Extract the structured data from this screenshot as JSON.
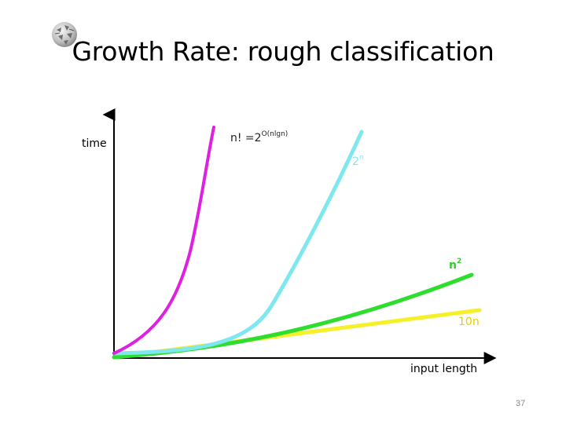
{
  "slide": {
    "title": "Growth Rate: rough classification",
    "page_number": "37",
    "logo_icon": "wikipedia-globe-icon"
  },
  "axes": {
    "y_label": "time",
    "x_label": "input length"
  },
  "curves": [
    {
      "id": "factorial",
      "label_base": "n! =2",
      "label_sup": "O(nlgn)",
      "color": "#e020e0"
    },
    {
      "id": "exponential",
      "label_base": "2",
      "label_sup": "n",
      "color": "#7fe7ee"
    },
    {
      "id": "quadratic",
      "label_base": "n",
      "label_sup": "2",
      "color": "#2fdd2f"
    },
    {
      "id": "linear",
      "label_base": "10n",
      "label_sup": "",
      "color": "#f5f028"
    }
  ]
}
